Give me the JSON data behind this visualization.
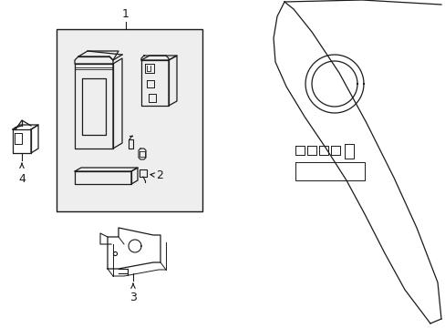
{
  "bg_color": "#ffffff",
  "line_color": "#1a1a1a",
  "box_fill": "#eeeeee",
  "label_1": "1",
  "label_2": "2",
  "label_3": "3",
  "label_4": "4",
  "font_size": 9
}
